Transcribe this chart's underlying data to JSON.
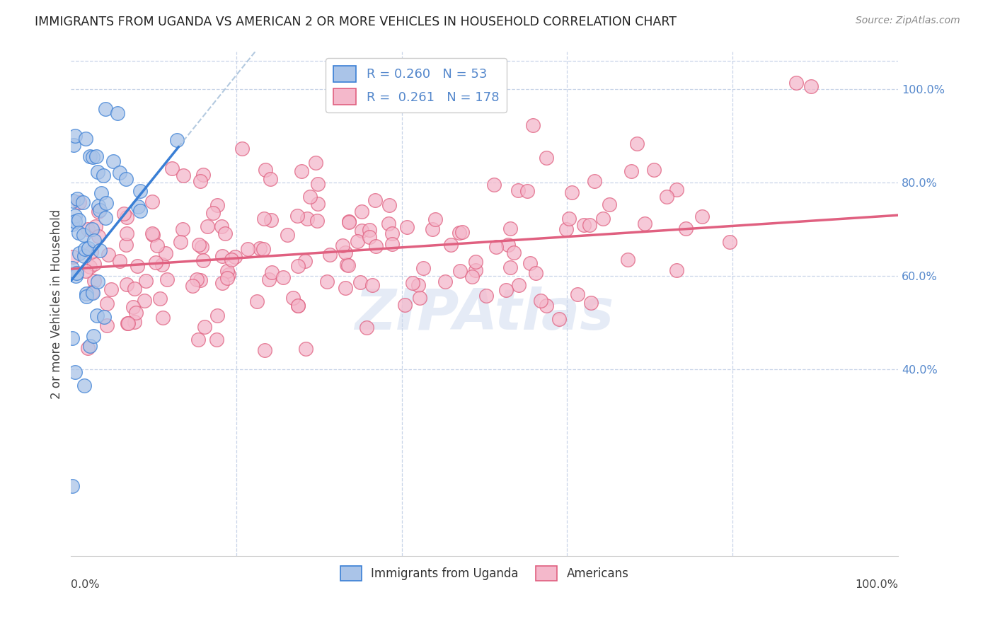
{
  "title": "IMMIGRANTS FROM UGANDA VS AMERICAN 2 OR MORE VEHICLES IN HOUSEHOLD CORRELATION CHART",
  "source": "Source: ZipAtlas.com",
  "ylabel": "2 or more Vehicles in Household",
  "legend_blue_r": "0.260",
  "legend_blue_n": "53",
  "legend_pink_r": "0.261",
  "legend_pink_n": "178",
  "legend_label_blue": "Immigrants from Uganda",
  "legend_label_pink": "Americans",
  "blue_scatter_color": "#aac4e8",
  "pink_scatter_color": "#f4b8cb",
  "blue_line_color": "#3a7fd5",
  "pink_line_color": "#e06080",
  "blue_dashed_color": "#a0bcd8",
  "grid_color": "#c8d4e8",
  "title_color": "#222222",
  "source_color": "#888888",
  "axis_label_color": "#5588cc",
  "watermark_color": "#ccd8ee",
  "watermark_alpha": 0.5,
  "blue_seed": 12345,
  "pink_seed": 67890
}
